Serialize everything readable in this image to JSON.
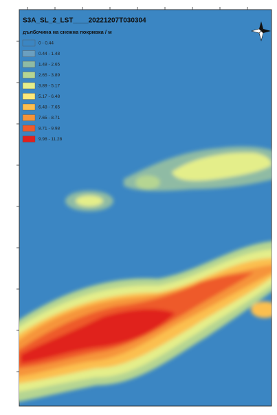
{
  "map": {
    "title": "S3A_SL_2_LST____20221207T030304",
    "legend": {
      "title": "дълбочина на снежна покривка / м",
      "items": [
        {
          "label": "0 - 0.44",
          "color": "#3b86c3"
        },
        {
          "label": "0.44 - 1.48",
          "color": "#6b9fc0"
        },
        {
          "label": "1.48 - 2.65",
          "color": "#8fbba4"
        },
        {
          "label": "2.65 - 3.89",
          "color": "#b5d592"
        },
        {
          "label": "3.89 - 5.17",
          "color": "#e4ee8a"
        },
        {
          "label": "5.17 - 6.48",
          "color": "#fde97a"
        },
        {
          "label": "6.48 - 7.65",
          "color": "#fbbf4f"
        },
        {
          "label": "7.65 - 8.71",
          "color": "#f6943a"
        },
        {
          "label": "8.71 - 9.98",
          "color": "#ee5a2b"
        },
        {
          "label": "9.98 - 11.28",
          "color": "#e0201e"
        }
      ]
    }
  }
}
